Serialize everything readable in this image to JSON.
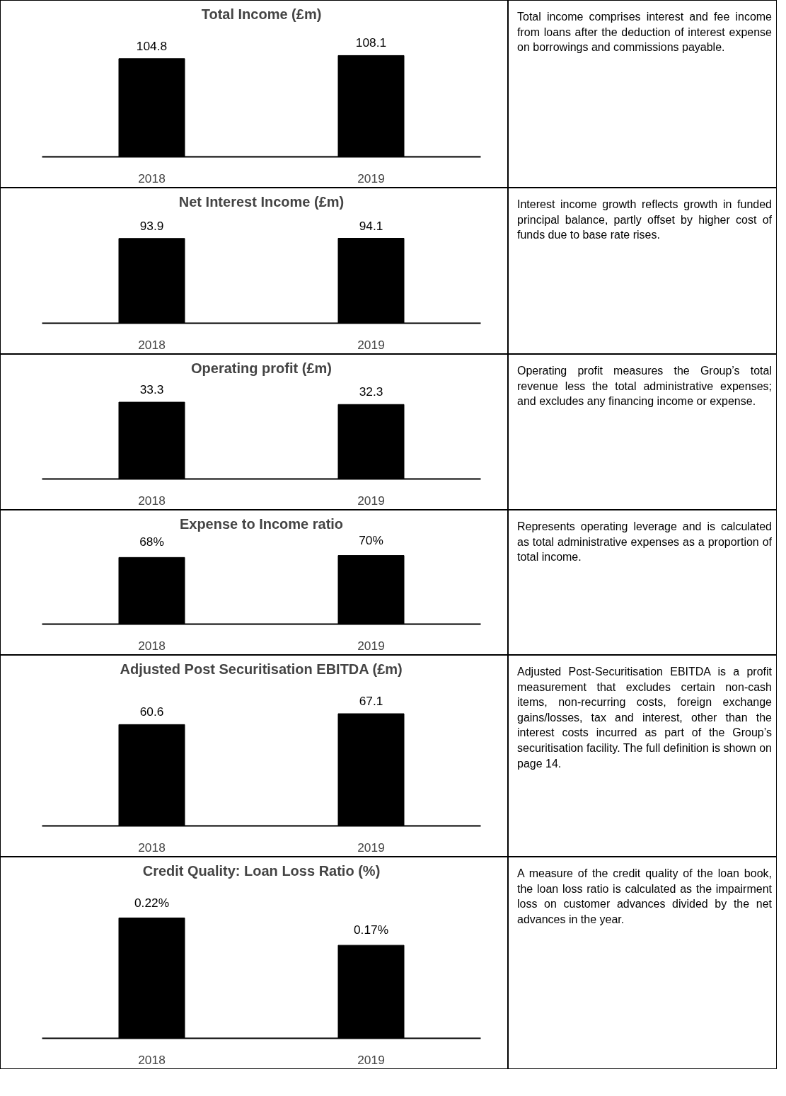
{
  "chart_data": [
    {
      "type": "bar",
      "title": "Total Income (£m)",
      "categories": [
        "2018",
        "2019"
      ],
      "values": [
        104.8,
        108.1
      ],
      "color": "#000000",
      "data_labels": true,
      "tick_labels": "x"
    },
    {
      "type": "other",
      "annotations": [
        "Total income comprises interest and fee income from loans after the deduction of interest expense on borrowings and commissions payable."
      ]
    },
    {
      "type": "bar",
      "title": "Net Interest Income (£m)",
      "categories": [
        "2018",
        "2019"
      ],
      "values": [
        93.9,
        94.1
      ],
      "color": "#000000",
      "data_labels": true,
      "tick_labels": "x"
    },
    {
      "type": "other",
      "annotations": [
        "Interest income growth reflects growth in funded principal balance, partly offset by higher cost of funds due to base rate rises."
      ]
    },
    {
      "type": "bar",
      "title": "Operating profit (£m)",
      "categories": [
        "2018",
        "2019"
      ],
      "values": [
        33.3,
        32.3
      ],
      "color": "#000000",
      "data_labels": true,
      "tick_labels": "x"
    },
    {
      "type": "other",
      "annotations": [
        "Operating profit measures the Group’s total revenue less the total administrative expenses; and excludes any financing income or expense."
      ]
    },
    {
      "type": "bar",
      "title": "Expense to Income ratio",
      "categories": [
        "2018",
        "2019"
      ],
      "values": [
        68,
        70
      ],
      "value_labels": [
        "68%",
        "70%"
      ],
      "color": "#000000",
      "tick_labels": "x"
    },
    {
      "type": "other",
      "annotations": [
        "Represents operating leverage and is calculated as total administrative expenses as a proportion of total income."
      ]
    },
    {
      "type": "bar",
      "title": "Adjusted Post Securitisation EBITDA (£m)",
      "categories": [
        "2018",
        "2019"
      ],
      "values": [
        60.6,
        67.1
      ],
      "color": "#000000",
      "data_labels": true,
      "tick_labels": "x"
    },
    {
      "type": "other",
      "annotations": [
        "Adjusted Post-Securitisation EBITDA is a profit measurement that excludes certain non-cash items, non-recurring costs, foreign exchange gains/losses, tax and interest, other than the interest costs incurred as part of the Group’s securitisation facility. The full definition is shown on page 14."
      ]
    },
    {
      "type": "bar",
      "title": "Credit Quality: Loan Loss Ratio (%)",
      "categories": [
        "2018",
        "2019"
      ],
      "values": [
        0.22,
        0.17
      ],
      "value_labels": [
        "0.22%",
        "0.17%"
      ],
      "color": "#000000",
      "tick_labels": "x"
    },
    {
      "type": "other",
      "annotations": [
        "A measure of the credit quality of the loan book, the loan loss ratio is calculated as the impairment loss on customer advances divided by the net advances in the year."
      ]
    }
  ]
}
